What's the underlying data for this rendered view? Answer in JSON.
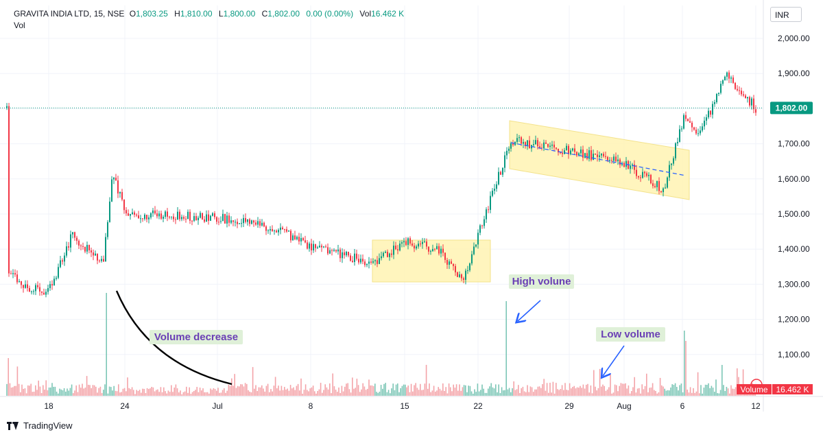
{
  "legend": {
    "symbol": "GRAVITA INDIA LTD, 15, NSE",
    "open_key": "O",
    "open": "1,803.25",
    "high_key": "H",
    "high": "1,810.00",
    "low_key": "L",
    "low": "1,800.00",
    "close_key": "C",
    "close": "1,802.00",
    "change": "0.00 (0.00%)",
    "vol_key": "Vol",
    "vol": "16.462 K",
    "vol_line": "Vol"
  },
  "currency": "INR",
  "footer": {
    "brand": "TradingView"
  },
  "colors": {
    "up": "#089981",
    "down": "#f23645",
    "up_volume": "#7cc6b6",
    "down_volume": "#f4a3a8",
    "highlight": "#fff3b3",
    "highlight_border": "#f3e28b",
    "annotation_text": "#6a3fb5",
    "annotation_bg": "#dff0d8",
    "arrow": "#2962ff",
    "price_line": "#089981",
    "grid": "#f0f3fa"
  },
  "chart_data": {
    "type": "candlestick",
    "y_axis": {
      "ticks": [
        "1,100.00",
        "1,200.00",
        "1,300.00",
        "1,400.00",
        "1,500.00",
        "1,600.00",
        "1,700.00",
        "1,800.00",
        "1,900.00",
        "2,000.00"
      ],
      "values": [
        1100,
        1200,
        1300,
        1400,
        1500,
        1600,
        1700,
        1800,
        1900,
        2000
      ]
    },
    "x_axis": {
      "ticks": [
        "18",
        "24",
        "Jul",
        "8",
        "15",
        "22",
        "29",
        "Aug",
        "6",
        "12"
      ]
    },
    "last_price": {
      "value": 1802,
      "label": "1,802.00"
    },
    "volume_badge": {
      "label": "Volume",
      "value": "16.462 K"
    },
    "price_path": [
      {
        "date": "Jun 14",
        "price": 1340
      },
      {
        "date": "Jun 17",
        "price": 1290
      },
      {
        "date": "Jun 18",
        "price": 1280
      },
      {
        "date": "Jun 20",
        "price": 1440
      },
      {
        "date": "Jun 21",
        "price": 1360
      },
      {
        "date": "Jun 23",
        "price": 1620
      },
      {
        "date": "Jun 24",
        "price": 1500
      },
      {
        "date": "Jul 1",
        "price": 1490
      },
      {
        "date": "Jul 5",
        "price": 1460
      },
      {
        "date": "Jul 8",
        "price": 1410
      },
      {
        "date": "Jul 12",
        "price": 1360
      },
      {
        "date": "Jul 15",
        "price": 1420
      },
      {
        "date": "Jul 18",
        "price": 1400
      },
      {
        "date": "Jul 19",
        "price": 1310
      },
      {
        "date": "Jul 22",
        "price": 1440
      },
      {
        "date": "Jul 24",
        "price": 1710
      },
      {
        "date": "Jul 29",
        "price": 1680
      },
      {
        "date": "Aug 2",
        "price": 1650
      },
      {
        "date": "Aug 5",
        "price": 1570
      },
      {
        "date": "Aug 6",
        "price": 1780
      },
      {
        "date": "Aug 7",
        "price": 1720
      },
      {
        "date": "Aug 9",
        "price": 1900
      },
      {
        "date": "Aug 12",
        "price": 1802
      }
    ],
    "annotations": [
      {
        "text": "Volume decrease"
      },
      {
        "text": "High volune"
      },
      {
        "text": "Low volume"
      }
    ]
  }
}
